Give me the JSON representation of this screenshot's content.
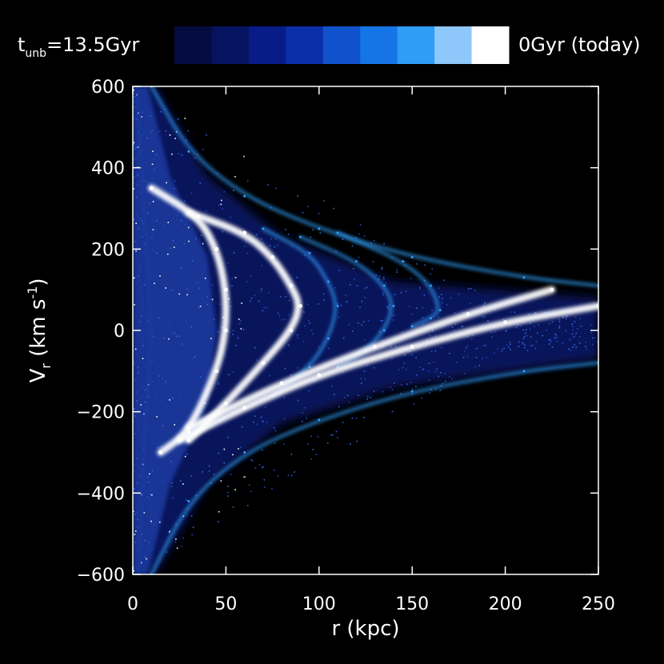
{
  "chart_data": {
    "type": "scatter",
    "xlabel": "r (kpc)",
    "ylabel_main": "V",
    "ylabel_sub": "r",
    "ylabel_units": " (km s",
    "ylabel_exp": "-1",
    "ylabel_close": ")",
    "xlim": [
      0,
      250
    ],
    "ylim": [
      -600,
      600
    ],
    "x_ticks": [
      0,
      50,
      100,
      150,
      200,
      250
    ],
    "y_ticks": [
      600,
      400,
      200,
      0,
      -200,
      -400,
      -600
    ],
    "grid": false,
    "colorbar": {
      "left_label_main": "t",
      "left_label_sub": "unb",
      "left_label_value": "=13.5Gyr",
      "right_label": "0Gyr (today)",
      "colors": [
        "#050c40",
        "#061460",
        "#081c88",
        "#0b2fa8",
        "#1052cc",
        "#1675e6",
        "#2f9cf5",
        "#8ec8fb",
        "#ffffff"
      ]
    },
    "series": [
      {
        "color": "#1a3aa0",
        "points": [
          [
            2,
            600
          ],
          [
            5,
            380
          ],
          [
            8,
            150
          ],
          [
            10,
            0
          ],
          [
            8,
            -150
          ],
          [
            5,
            -380
          ],
          [
            3,
            -600
          ]
        ]
      },
      {
        "color": "#ffffff",
        "points": [
          [
            10,
            350
          ],
          [
            35,
            280
          ],
          [
            45,
            200
          ],
          [
            50,
            100
          ],
          [
            50,
            0
          ],
          [
            45,
            -100
          ],
          [
            30,
            -250
          ],
          [
            15,
            -300
          ]
        ]
      },
      {
        "color": "#ffffff",
        "points": [
          [
            30,
            290
          ],
          [
            60,
            240
          ],
          [
            75,
            180
          ],
          [
            85,
            110
          ],
          [
            90,
            60
          ],
          [
            85,
            0
          ],
          [
            70,
            -80
          ],
          [
            50,
            -180
          ],
          [
            30,
            -270
          ]
        ]
      },
      {
        "color": "#2f9cf5",
        "points": [
          [
            70,
            250
          ],
          [
            95,
            190
          ],
          [
            105,
            120
          ],
          [
            110,
            60
          ],
          [
            105,
            -20
          ],
          [
            95,
            -90
          ],
          [
            75,
            -160
          ]
        ]
      },
      {
        "color": "#2f9cf5",
        "points": [
          [
            90,
            230
          ],
          [
            120,
            170
          ],
          [
            135,
            110
          ],
          [
            140,
            60
          ],
          [
            135,
            0
          ],
          [
            125,
            -50
          ],
          [
            110,
            -90
          ]
        ]
      },
      {
        "color": "#2f9cf5",
        "points": [
          [
            110,
            240
          ],
          [
            145,
            170
          ],
          [
            160,
            110
          ],
          [
            165,
            50
          ],
          [
            160,
            30
          ],
          [
            150,
            10
          ]
        ]
      },
      {
        "color": "#ffffff",
        "points": [
          [
            25,
            -270
          ],
          [
            60,
            -190
          ],
          [
            100,
            -110
          ],
          [
            150,
            -40
          ],
          [
            200,
            20
          ],
          [
            250,
            60
          ]
        ]
      },
      {
        "color": "#ffffff",
        "points": [
          [
            30,
            -240
          ],
          [
            80,
            -130
          ],
          [
            130,
            -40
          ],
          [
            180,
            40
          ],
          [
            225,
            100
          ]
        ]
      },
      {
        "color": "#2f9cf5",
        "points": [
          [
            10,
            600
          ],
          [
            30,
            440
          ],
          [
            60,
            330
          ],
          [
            100,
            250
          ],
          [
            150,
            180
          ],
          [
            210,
            130
          ],
          [
            250,
            110
          ]
        ]
      },
      {
        "color": "#2f9cf5",
        "points": [
          [
            10,
            -600
          ],
          [
            30,
            -420
          ],
          [
            60,
            -300
          ],
          [
            100,
            -220
          ],
          [
            150,
            -150
          ],
          [
            210,
            -100
          ],
          [
            250,
            -80
          ]
        ]
      }
    ]
  }
}
